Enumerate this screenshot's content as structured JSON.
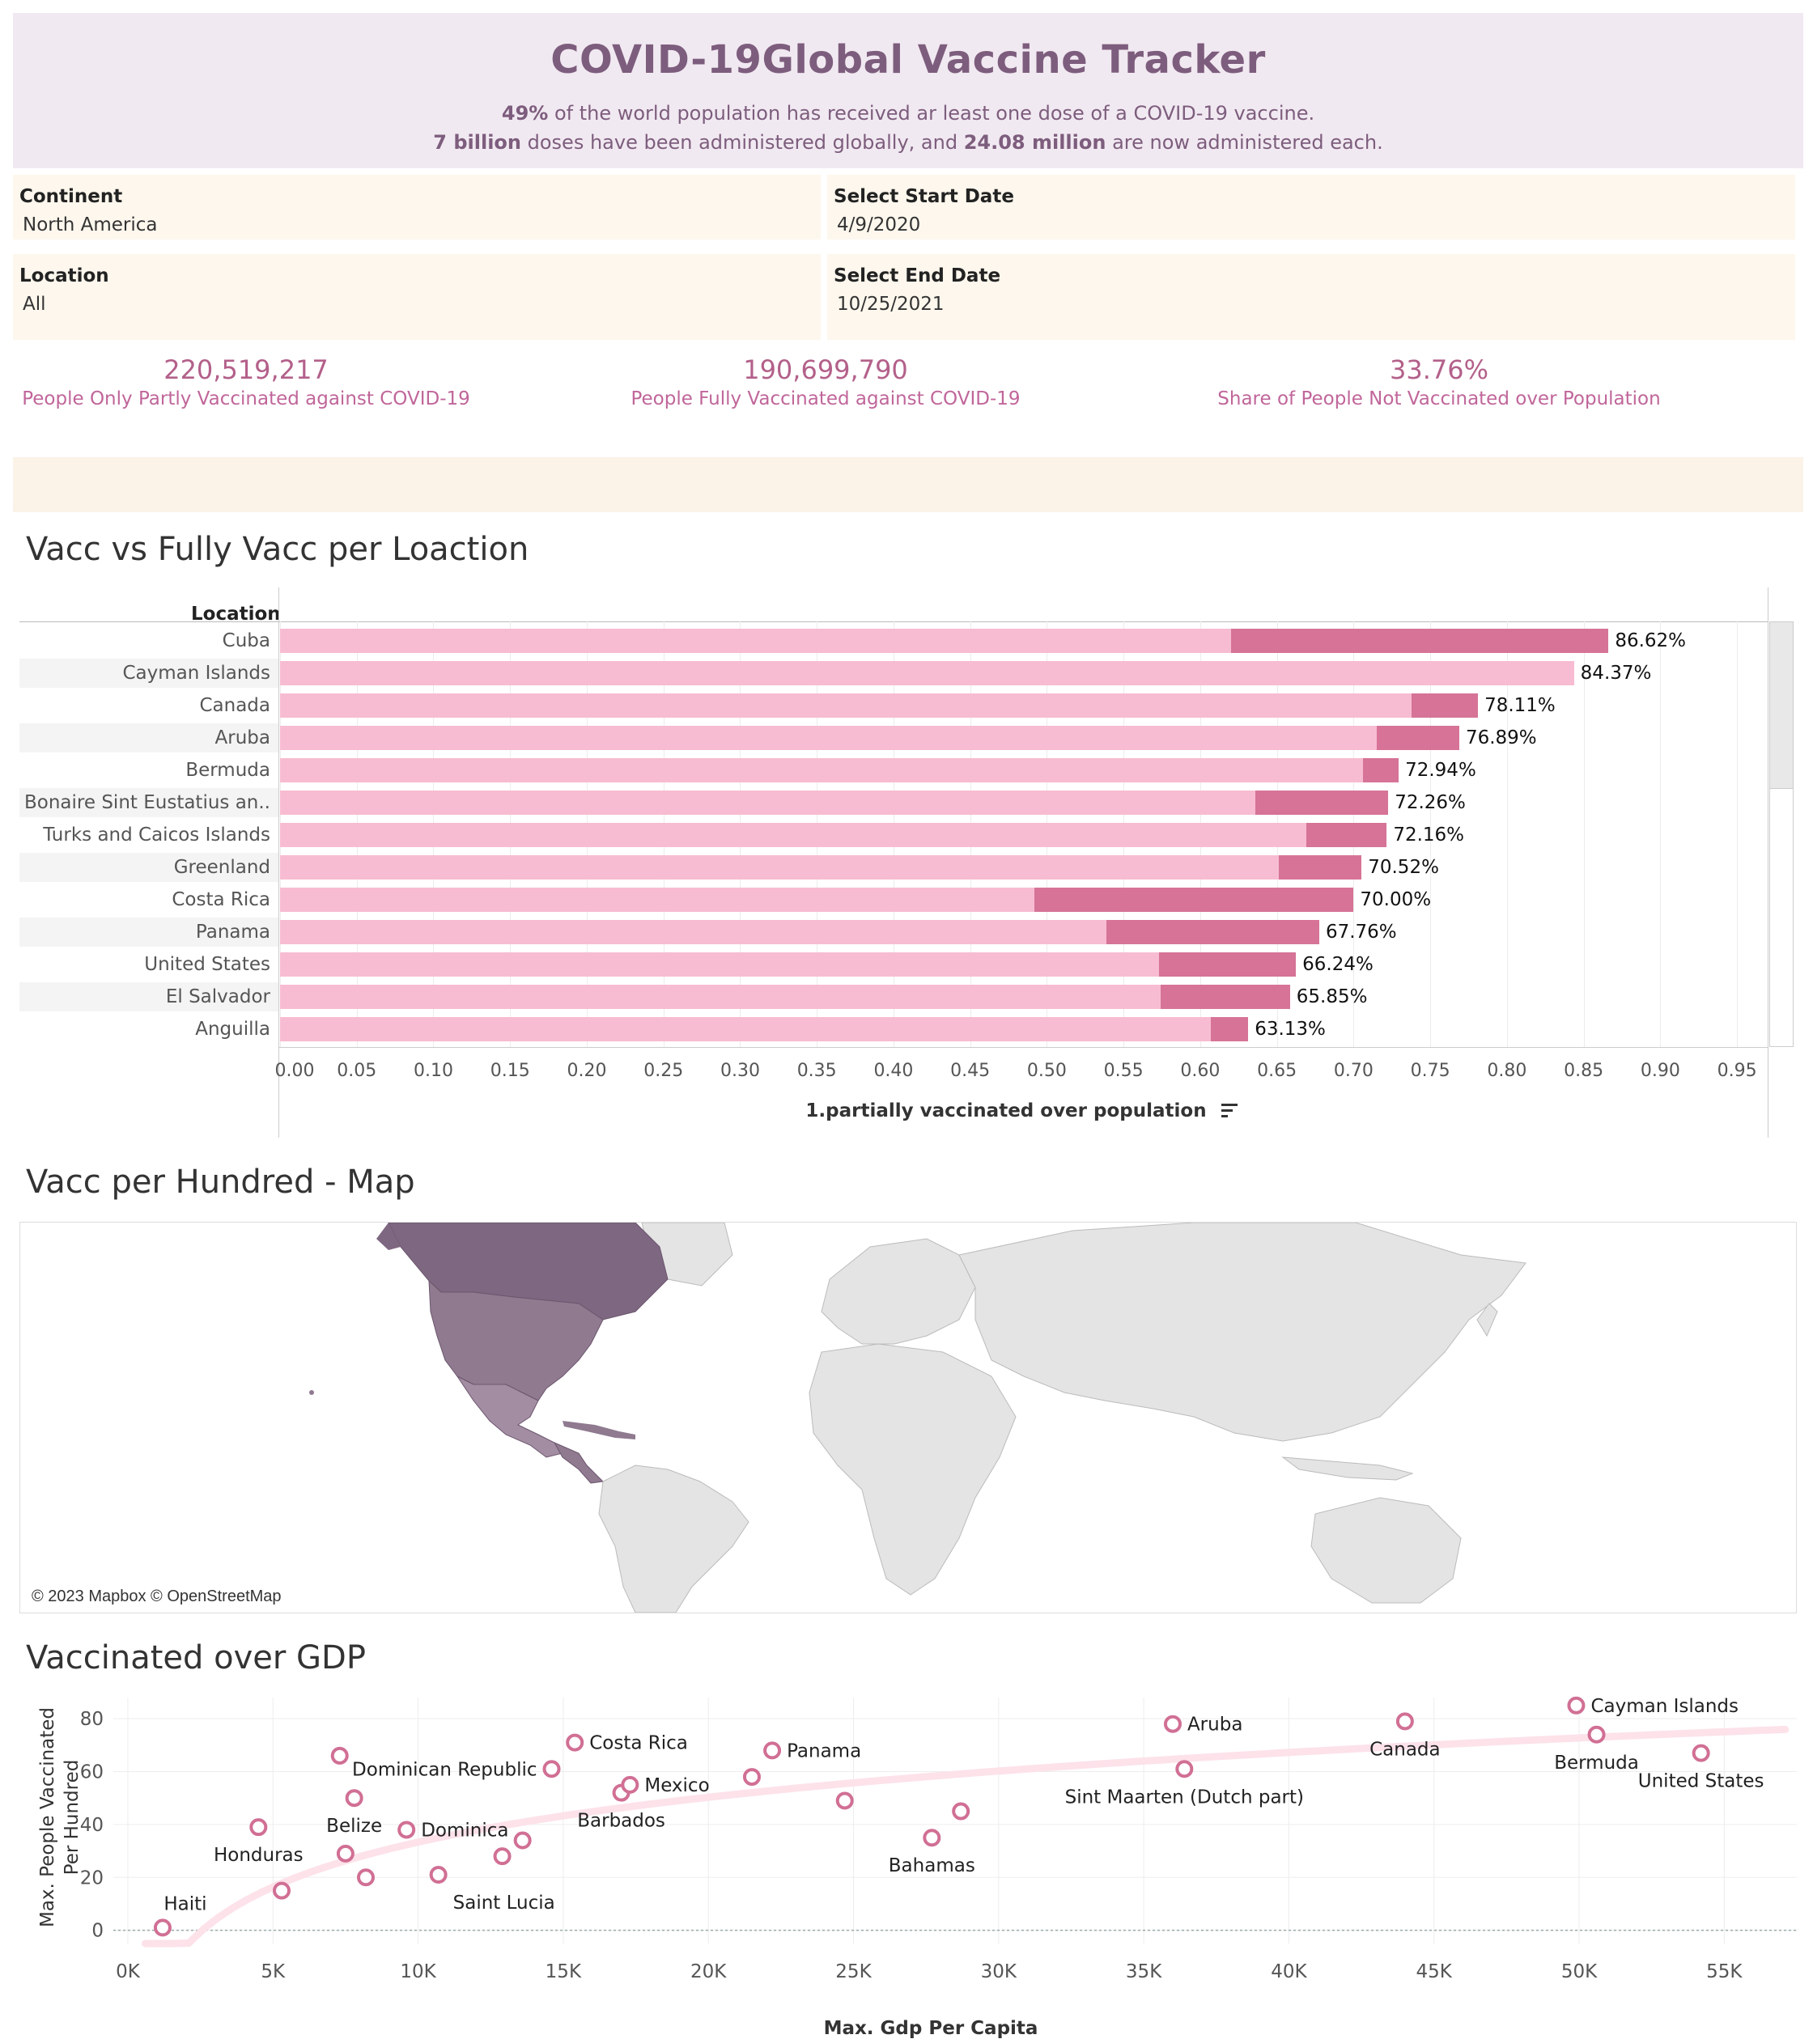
{
  "header": {
    "title": "COVID-19Global Vaccine Tracker",
    "line1_bold": "49%",
    "line1_rest": " of the world population has received ar least one dose of a COVID-19 vaccine.",
    "line2_bold1": "7 billion",
    "line2_mid": " doses have been administered globally, and ",
    "line2_bold2": "24.08 million",
    "line2_end": " are now administered each."
  },
  "filters": {
    "continent": {
      "label": "Continent",
      "value": "North America"
    },
    "start_date": {
      "label": "Select Start Date",
      "value": "4/9/2020"
    },
    "location": {
      "label": "Location",
      "value": "All"
    },
    "end_date": {
      "label": "Select End Date",
      "value": "10/25/2021"
    }
  },
  "kpis": [
    {
      "value": "220,519,217",
      "label": "People Only Partly Vaccinated against COVID-19"
    },
    {
      "value": "190,699,790",
      "label": "People Fully Vaccinated against COVID-19"
    },
    {
      "value": "33.76%",
      "label": "Share of People Not Vaccinated over Population"
    }
  ],
  "bar_section": {
    "title": "Vacc vs Fully Vacc per Loaction",
    "column_header": "Location",
    "x_axis_label": "1.partially vaccinated over population",
    "sort_icon": "sort-descending-icon"
  },
  "map_section": {
    "title": "Vacc per Hundred - Map",
    "credit": "© 2023 Mapbox © OpenStreetMap"
  },
  "scatter_section": {
    "title": "Vaccinated over GDP"
  },
  "colors": {
    "light_bar": "#f7bcd1",
    "dark_bar": "#d67397",
    "scatter_marker": "#d16f94",
    "trend": "#fde2ea",
    "na_map_dark": "#7e6780",
    "na_map_mid": "#8f7a90",
    "na_map_light": "#a38da3",
    "land": "#e4e4e4"
  },
  "chart_data": [
    {
      "type": "bar",
      "title": "Vacc vs Fully Vacc per Loaction",
      "xlabel": "1.partially vaccinated over population",
      "ylabel": "Location",
      "xlim": [
        0,
        0.97
      ],
      "xticks": [
        "0.00",
        "0.05",
        "0.10",
        "0.15",
        "0.20",
        "0.25",
        "0.30",
        "0.35",
        "0.40",
        "0.45",
        "0.50",
        "0.55",
        "0.60",
        "0.65",
        "0.70",
        "0.75",
        "0.80",
        "0.85",
        "0.90",
        "0.95"
      ],
      "categories": [
        "Cuba",
        "Cayman Islands",
        "Canada",
        "Aruba",
        "Bermuda",
        "Bonaire Sint Eustatius an..",
        "Turks and Caicos Islands",
        "Greenland",
        "Costa Rica",
        "Panama",
        "United States",
        "El Salvador",
        "Anguilla"
      ],
      "series": [
        {
          "values": [
            0.62,
            0.8437,
            0.738,
            0.715,
            0.706,
            0.636,
            0.669,
            0.651,
            0.492,
            0.539,
            0.573,
            0.574,
            0.607
          ]
        },
        {
          "values": [
            0.8662,
            0.8437,
            0.7811,
            0.7689,
            0.7294,
            0.7226,
            0.7216,
            0.7052,
            0.7,
            0.6776,
            0.6624,
            0.6585,
            0.6313
          ]
        }
      ],
      "labels": [
        "86.62%",
        "84.37%",
        "78.11%",
        "76.89%",
        "72.94%",
        "72.26%",
        "72.16%",
        "70.52%",
        "70.00%",
        "67.76%",
        "66.24%",
        "65.85%",
        "63.13%"
      ]
    },
    {
      "type": "scatter",
      "title": "Vaccinated over GDP",
      "xlabel": "Max. Gdp Per Capita",
      "ylabel_line1": "Max. People Vaccinated",
      "ylabel_line2": "Per Hundred",
      "xlim": [
        -500,
        57500
      ],
      "ylim": [
        -5,
        88
      ],
      "xticks": [
        {
          "v": 0,
          "t": "0K"
        },
        {
          "v": 5000,
          "t": "5K"
        },
        {
          "v": 10000,
          "t": "10K"
        },
        {
          "v": 15000,
          "t": "15K"
        },
        {
          "v": 20000,
          "t": "20K"
        },
        {
          "v": 25000,
          "t": "25K"
        },
        {
          "v": 30000,
          "t": "30K"
        },
        {
          "v": 35000,
          "t": "35K"
        },
        {
          "v": 40000,
          "t": "40K"
        },
        {
          "v": 45000,
          "t": "45K"
        },
        {
          "v": 50000,
          "t": "50K"
        },
        {
          "v": 55000,
          "t": "55K"
        }
      ],
      "yticks": [
        0,
        20,
        40,
        60,
        80
      ],
      "points": [
        {
          "x": 1200,
          "y": 1,
          "label": "Haiti",
          "anchor": "above"
        },
        {
          "x": 4500,
          "y": 39,
          "label": "Honduras",
          "anchor": "below"
        },
        {
          "x": 5300,
          "y": 15,
          "label": ""
        },
        {
          "x": 7300,
          "y": 66,
          "label": ""
        },
        {
          "x": 7500,
          "y": 29,
          "label": ""
        },
        {
          "x": 7800,
          "y": 50,
          "label": "Belize",
          "anchor": "below"
        },
        {
          "x": 8200,
          "y": 20,
          "label": ""
        },
        {
          "x": 9600,
          "y": 38,
          "label": "Dominica",
          "anchor": "right"
        },
        {
          "x": 10700,
          "y": 21,
          "label": "Saint Lucia",
          "anchor": "below-right"
        },
        {
          "x": 12900,
          "y": 28,
          "label": ""
        },
        {
          "x": 13600,
          "y": 34,
          "label": ""
        },
        {
          "x": 14600,
          "y": 61,
          "label": "Dominican Republic",
          "anchor": "left"
        },
        {
          "x": 15400,
          "y": 71,
          "label": "Costa Rica",
          "anchor": "right"
        },
        {
          "x": 17000,
          "y": 52,
          "label": "Barbados",
          "anchor": "below"
        },
        {
          "x": 17300,
          "y": 55,
          "label": "Mexico",
          "anchor": "right"
        },
        {
          "x": 21500,
          "y": 58,
          "label": ""
        },
        {
          "x": 22200,
          "y": 68,
          "label": "Panama",
          "anchor": "right"
        },
        {
          "x": 24700,
          "y": 49,
          "label": ""
        },
        {
          "x": 27700,
          "y": 35,
          "label": "Bahamas",
          "anchor": "below"
        },
        {
          "x": 28700,
          "y": 45,
          "label": ""
        },
        {
          "x": 36000,
          "y": 78,
          "label": "Aruba",
          "anchor": "right"
        },
        {
          "x": 36400,
          "y": 61,
          "label": "Sint Maarten (Dutch part)",
          "anchor": "below"
        },
        {
          "x": 44000,
          "y": 79,
          "label": "Canada",
          "anchor": "below"
        },
        {
          "x": 49900,
          "y": 85,
          "label": "Cayman Islands",
          "anchor": "right"
        },
        {
          "x": 50600,
          "y": 74,
          "label": "Bermuda",
          "anchor": "below"
        },
        {
          "x": 54200,
          "y": 67,
          "label": "United States",
          "anchor": "below"
        }
      ]
    }
  ]
}
